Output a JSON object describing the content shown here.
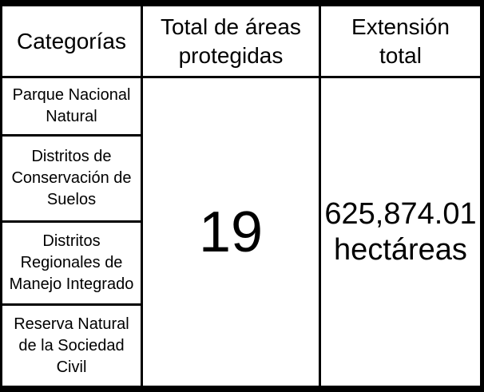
{
  "colors": {
    "border": "#000000",
    "cell_background": "#ffffff",
    "text": "#000000"
  },
  "table": {
    "headers": [
      {
        "label": "Categorías"
      },
      {
        "label": "Total de áreas protegidas"
      },
      {
        "label": "Extensión total"
      }
    ],
    "categories": [
      {
        "label": "Parque Nacional Natural"
      },
      {
        "label": "Distritos de Conservación de Suelos"
      },
      {
        "label": "Distritos Regionales de Manejo Integrado"
      },
      {
        "label": "Reserva Natural de la Sociedad Civil"
      }
    ],
    "total_protected_areas": "19",
    "extension_total": "625,874.01 hectáreas"
  },
  "chart_data": {
    "type": "table",
    "title": "",
    "columns": [
      "Categorías",
      "Total de áreas protegidas",
      "Extensión total"
    ],
    "rows": [
      [
        "Parque Nacional Natural",
        "19",
        "625,874.01 hectáreas"
      ],
      [
        "Distritos de Conservación de Suelos",
        "19",
        "625,874.01 hectáreas"
      ],
      [
        "Distritos Regionales de Manejo Integrado",
        "19",
        "625,874.01 hectáreas"
      ],
      [
        "Reserva Natural de la Sociedad Civil",
        "19",
        "625,874.01 hectáreas"
      ]
    ],
    "notes": "Column 2 and 3 are merged cells spanning all four category rows"
  }
}
